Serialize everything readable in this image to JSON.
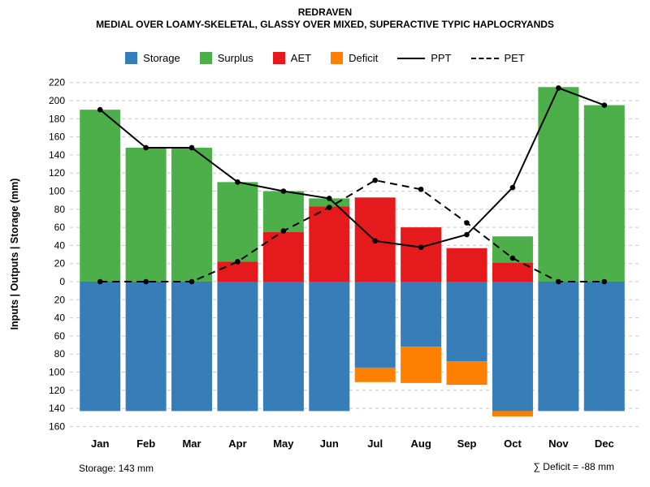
{
  "chart_data": {
    "type": "bar",
    "subtype": "monthly-water-balance",
    "title": "REDRAVEN",
    "subtitle": "MEDIAL OVER LOAMY-SKELETAL, GLASSY OVER MIXED, SUPERACTIVE TYPIC HAPLOCRYANDS",
    "ylabel": "Inputs | Outputs | Storage (mm)",
    "categories": [
      "Jan",
      "Feb",
      "Mar",
      "Apr",
      "May",
      "Jun",
      "Jul",
      "Aug",
      "Sep",
      "Oct",
      "Nov",
      "Dec"
    ],
    "axis": {
      "up_max": 220,
      "down_max": 160,
      "tick_step": 20,
      "grid": "dashed"
    },
    "colors": {
      "storage": "#377EB8",
      "surplus": "#4DAF4A",
      "aet": "#E41A1C",
      "deficit": "#FF7F00",
      "line": "#000000",
      "grid": "#c9c9c9"
    },
    "series": [
      {
        "name": "Storage",
        "kind": "bar",
        "direction": "down",
        "color": "#377EB8",
        "values": [
          143,
          143,
          143,
          143,
          143,
          143,
          95,
          72,
          88,
          143,
          143,
          143
        ]
      },
      {
        "name": "Deficit",
        "kind": "bar",
        "direction": "down",
        "color": "#FF7F00",
        "values": [
          0,
          0,
          0,
          0,
          0,
          0,
          16,
          40,
          26,
          6,
          0,
          0
        ]
      },
      {
        "name": "AET",
        "kind": "bar",
        "direction": "up",
        "color": "#E41A1C",
        "values": [
          0,
          0,
          0,
          22,
          55,
          83,
          93,
          60,
          37,
          21,
          0,
          0
        ]
      },
      {
        "name": "Surplus",
        "kind": "bar",
        "direction": "up",
        "color": "#4DAF4A",
        "values": [
          190,
          148,
          148,
          88,
          45,
          9,
          0,
          0,
          0,
          29,
          215,
          195
        ]
      },
      {
        "name": "PPT",
        "kind": "line",
        "style": "solid",
        "color": "#000000",
        "values": [
          190,
          148,
          148,
          110,
          100,
          92,
          45,
          38,
          52,
          104,
          214,
          195
        ]
      },
      {
        "name": "PET",
        "kind": "line",
        "style": "dashed",
        "color": "#000000",
        "values": [
          0,
          0,
          0,
          22,
          56,
          82,
          112,
          102,
          65,
          26,
          0,
          0
        ]
      }
    ],
    "legend": [
      {
        "label": "Storage",
        "swatch": "square",
        "color": "#377EB8"
      },
      {
        "label": "Surplus",
        "swatch": "square",
        "color": "#4DAF4A"
      },
      {
        "label": "AET",
        "swatch": "square",
        "color": "#E41A1C"
      },
      {
        "label": "Deficit",
        "swatch": "square",
        "color": "#FF7F00"
      },
      {
        "label": "PPT",
        "swatch": "line-solid",
        "color": "#000000"
      },
      {
        "label": "PET",
        "swatch": "line-dashed",
        "color": "#000000"
      }
    ],
    "legend_position": "top-center"
  },
  "footer": {
    "storage_text": "Storage: 143 mm",
    "deficit_text": "∑ Deficit = -88 mm"
  }
}
